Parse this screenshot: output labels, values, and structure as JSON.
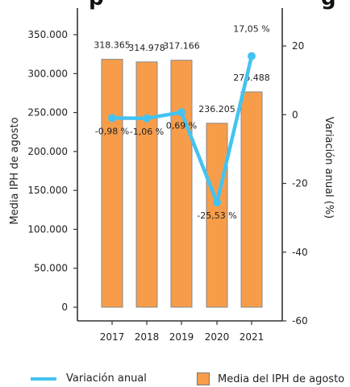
{
  "chart_data": {
    "type": "bar",
    "title_fragment": "p",
    "title_fragment_right": "g",
    "categories": [
      "2017",
      "2018",
      "2019",
      "2020",
      "2021"
    ],
    "series": [
      {
        "name": "Media del IPH de agosto",
        "type": "bar",
        "axis": "left",
        "values": [
          318365,
          314978,
          317166,
          236205,
          276488
        ],
        "labels": [
          "318.365",
          "314.978",
          "317.166",
          "236.205",
          "276.488"
        ],
        "color": "#f79d4a"
      },
      {
        "name": "Variación anual",
        "type": "line",
        "axis": "right",
        "values": [
          -0.98,
          -1.06,
          0.69,
          -25.53,
          17.05
        ],
        "labels": [
          "-0,98 %",
          "-1,06 %",
          "0,69 %",
          "-25,53 %",
          "17,05 %"
        ],
        "color": "#44c3f0"
      }
    ],
    "ylabel_left": "Media IPH de  agosto",
    "ylabel_right": "Variación anual (%)",
    "ylim_left": [
      0,
      350000
    ],
    "yticks_left": [
      "0",
      "50.000",
      "100.000",
      "150.000",
      "200.000",
      "250.000",
      "300.000",
      "350.000"
    ],
    "ylim_right": [
      -60,
      20
    ],
    "yticks_right": [
      "-60",
      "-40",
      "-20",
      "0",
      "20"
    ],
    "grid": false,
    "legend_position": "bottom"
  },
  "legend": {
    "line_label": "Variación anual",
    "bar_label": "Media del IPH de agosto"
  }
}
